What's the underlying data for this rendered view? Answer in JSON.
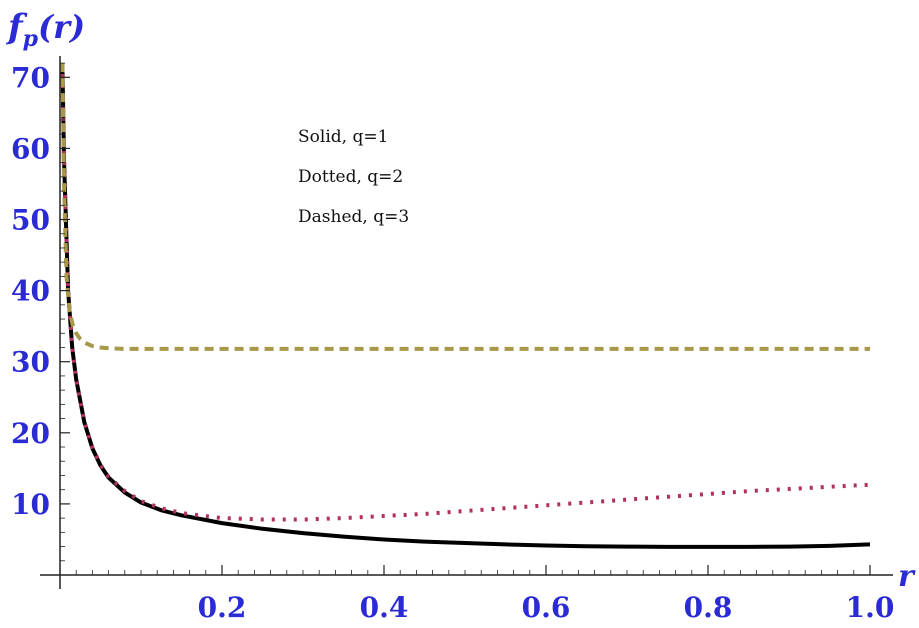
{
  "chart_data": {
    "type": "line",
    "ylabel_base": "f",
    "ylabel_sub": "p",
    "ylabel_arg": "(r)",
    "xlabel": "r",
    "xlim": [
      0,
      1.0
    ],
    "ylim": [
      0,
      73
    ],
    "x_ticks": [
      0.2,
      0.4,
      0.6,
      0.8,
      1.0
    ],
    "x_tick_labels": [
      "0.2",
      "0.4",
      "0.6",
      "0.8",
      "1.0"
    ],
    "y_ticks": [
      10,
      20,
      30,
      40,
      50,
      60,
      70
    ],
    "y_tick_labels": [
      "10",
      "20",
      "30",
      "40",
      "50",
      "60",
      "70"
    ],
    "legend": [
      "Solid, q=1",
      "Dotted, q=2",
      "Dashed, q=3"
    ],
    "series": [
      {
        "style": "solid",
        "color": "#000000",
        "x": [
          0.003,
          0.005,
          0.01,
          0.015,
          0.02,
          0.03,
          0.04,
          0.05,
          0.06,
          0.08,
          0.1,
          0.125,
          0.15,
          0.2,
          0.25,
          0.3,
          0.35,
          0.4,
          0.45,
          0.5,
          0.55,
          0.6,
          0.65,
          0.7,
          0.75,
          0.8,
          0.85,
          0.9,
          0.95,
          1.0
        ],
        "y": [
          72,
          58.5,
          40,
          32,
          27.5,
          21.5,
          17.8,
          15.4,
          13.7,
          11.6,
          10.2,
          9.1,
          8.4,
          7.3,
          6.5,
          5.9,
          5.4,
          5.0,
          4.7,
          4.5,
          4.3,
          4.15,
          4.05,
          4.0,
          3.95,
          3.95,
          3.95,
          4.0,
          4.1,
          4.3
        ]
      },
      {
        "style": "dotted",
        "color": "#b03060",
        "x": [
          0.003,
          0.005,
          0.01,
          0.015,
          0.02,
          0.03,
          0.04,
          0.05,
          0.06,
          0.08,
          0.1,
          0.125,
          0.15,
          0.2,
          0.25,
          0.3,
          0.35,
          0.4,
          0.45,
          0.5,
          0.55,
          0.6,
          0.65,
          0.7,
          0.75,
          0.8,
          0.85,
          0.9,
          0.95,
          1.0
        ],
        "y": [
          72,
          58.5,
          40,
          32,
          27.5,
          21.6,
          17.9,
          15.5,
          13.8,
          11.8,
          10.4,
          9.4,
          8.7,
          8.0,
          7.8,
          7.8,
          8.0,
          8.3,
          8.6,
          9.0,
          9.4,
          9.8,
          10.2,
          10.6,
          11.0,
          11.4,
          11.8,
          12.1,
          12.4,
          12.7
        ]
      },
      {
        "style": "dashed",
        "color": "#a8984a",
        "x": [
          0.003,
          0.005,
          0.008,
          0.012,
          0.016,
          0.02,
          0.025,
          0.03,
          0.04,
          0.05,
          0.06,
          0.08,
          0.1,
          0.15,
          0.2,
          0.3,
          0.4,
          0.5,
          0.6,
          0.7,
          0.8,
          0.9,
          1.0
        ],
        "y": [
          72,
          55,
          42,
          37,
          35,
          34,
          33.2,
          32.7,
          32.2,
          32.0,
          31.9,
          31.8,
          31.8,
          31.8,
          31.8,
          31.8,
          31.8,
          31.8,
          31.8,
          31.8,
          31.8,
          31.8,
          31.8
        ]
      }
    ]
  }
}
